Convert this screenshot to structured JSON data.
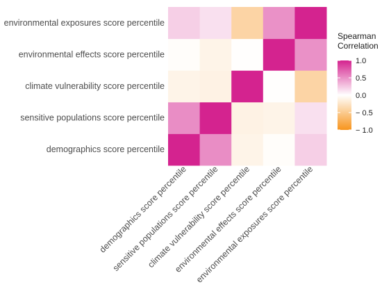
{
  "chart_data": {
    "type": "heatmap",
    "title": "",
    "xlabel": "",
    "ylabel": "",
    "x_categories": [
      "demographics score percentile",
      "sensitive populations score percentile",
      "climate vulnerability score percentile",
      "environmental effects score percentile",
      "environmental exposures score percentile"
    ],
    "y_categories_bottom_to_top": [
      "demographics score percentile",
      "sensitive populations score percentile",
      "climate vulnerability score percentile",
      "environmental effects score percentile",
      "environmental exposures score percentile"
    ],
    "values_rows_bottom_to_top": [
      [
        1.0,
        0.52,
        -0.1,
        -0.02,
        0.22
      ],
      [
        0.52,
        1.0,
        -0.12,
        -0.1,
        0.14
      ],
      [
        -0.1,
        -0.12,
        1.0,
        -0.01,
        -0.4
      ],
      [
        -0.02,
        -0.1,
        -0.01,
        1.0,
        0.5
      ],
      [
        0.22,
        0.14,
        -0.4,
        0.5,
        1.0
      ]
    ],
    "legend": {
      "title_lines": [
        "Spearman",
        "Correlation"
      ],
      "ticks": [
        1.0,
        0.5,
        0.0,
        -0.5,
        -1.0
      ],
      "tick_labels": [
        "1.0",
        "0.5",
        "0.0",
        "− 0.5",
        "− 1.0"
      ],
      "placement": "right"
    },
    "value_range": [
      -1,
      1
    ],
    "colors": {
      "low": "#f7941d",
      "mid": "#ffffff",
      "high": "#d4238f"
    }
  }
}
